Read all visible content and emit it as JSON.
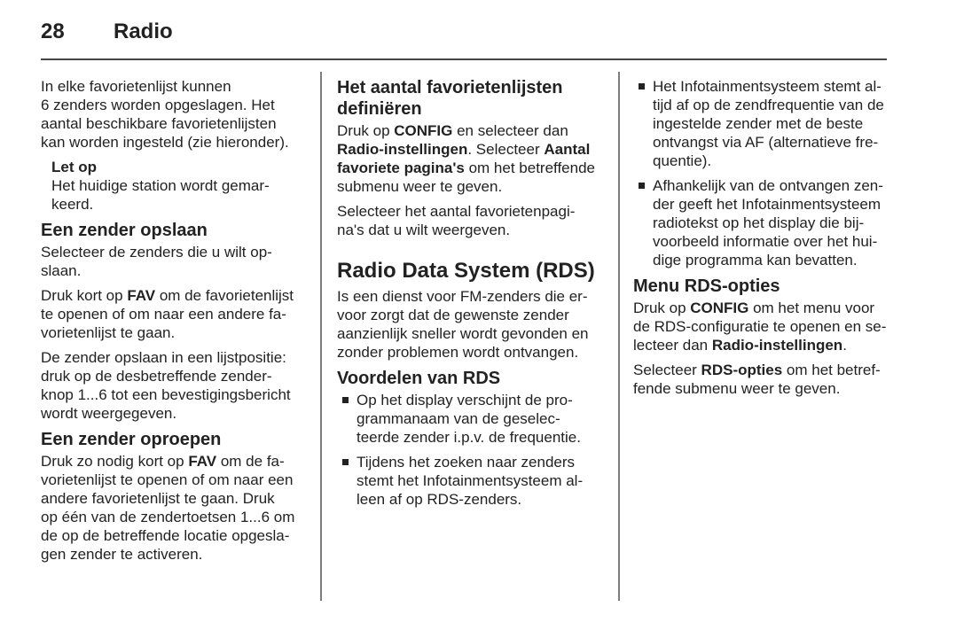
{
  "header": {
    "page_number": "28",
    "chapter": "Radio"
  },
  "colors": {
    "background": "#ffffff",
    "text": "#222222",
    "header_rule": "#454545",
    "column_divider": "#7d7d7d"
  },
  "columns": [
    {
      "blocks": [
        {
          "type": "para",
          "text": "In elke favorietenlijst kunnen\n6 zenders worden opgeslagen. Het\naantal beschikbare favorietenlijsten\nkan worden ingesteld (zie hieronder)."
        },
        {
          "type": "note",
          "title": "Let op",
          "text": "Het huidige station wordt gemar-\nkeerd."
        },
        {
          "type": "h2",
          "text": "Een zender opslaan"
        },
        {
          "type": "para",
          "text": "Selecteer de zenders die u wilt op-\nslaan."
        },
        {
          "type": "para_runs",
          "runs": [
            "Druk kort op ",
            "FAV",
            " om de favorietenlijst\nte openen of om naar een andere fa-\nvorietenlijst te gaan."
          ]
        },
        {
          "type": "para",
          "text": "De zender opslaan in een lijstpositie:\ndruk op de desbetreffende zender-\nknop 1...6 tot een bevestigingsbericht\nwordt weergegeven."
        },
        {
          "type": "h2",
          "text": "Een zender oproepen"
        },
        {
          "type": "para_runs",
          "runs": [
            "Druk zo nodig kort op ",
            "FAV",
            " om de fa-\nvorietenlijst te openen of om naar een\nandere favorietenlijst te gaan. Druk\nop één van de zendertoetsen 1...6 om\nde op de betreffende locatie opgesla-\ngen zender te activeren."
          ]
        }
      ]
    },
    {
      "blocks": [
        {
          "type": "h2",
          "text": "Het aantal favorietenlijsten\ndefiniëren"
        },
        {
          "type": "para_runs",
          "runs": [
            "Druk op ",
            "CONFIG",
            " en selecteer dan\n",
            "Radio-instellingen",
            ". Selecteer ",
            "Aantal\nfavoriete pagina's",
            " om het betreffende\nsubmenu weer te geven."
          ]
        },
        {
          "type": "para",
          "text": "Selecteer het aantal favorietenpagi-\nna's dat u wilt weergeven."
        },
        {
          "type": "h1",
          "text": "Radio Data System (RDS)"
        },
        {
          "type": "para",
          "text": "Is een dienst voor FM-zenders die er-\nvoor zorgt dat de gewenste zender\naanzienlijk sneller wordt gevonden en\nzonder problemen wordt ontvangen."
        },
        {
          "type": "h2",
          "text": "Voordelen van RDS"
        },
        {
          "type": "bullets",
          "items": [
            "Op het display verschijnt de pro-\ngrammanaam van de geselec-\nteerde zender i.p.v. de frequentie.",
            "Tijdens het zoeken naar zenders\nstemt het Infotainmentsysteem al-\nleen af op RDS-zenders."
          ]
        }
      ]
    },
    {
      "blocks": [
        {
          "type": "bullets",
          "items": [
            "Het Infotainmentsysteem stemt al-\ntijd af op de zendfrequentie van de\ningestelde zender met de beste\nontvangst via AF (alternatieve fre-\nquentie).",
            "Afhankelijk van de ontvangen zen-\nder geeft het Infotainmentsysteem\nradiotekst op het display die bij-\nvoorbeeld informatie over het hui-\ndige programma kan bevatten."
          ]
        },
        {
          "type": "h2",
          "text": "Menu RDS-opties"
        },
        {
          "type": "para_runs",
          "runs": [
            "Druk op ",
            "CONFIG",
            " om het menu voor\nde RDS-configuratie te openen en se-\nlecteer dan ",
            "Radio-instellingen",
            "."
          ]
        },
        {
          "type": "para_runs",
          "runs": [
            "Selecteer ",
            "RDS-opties",
            " om het betref-\nfende submenu weer te geven."
          ]
        }
      ]
    }
  ]
}
